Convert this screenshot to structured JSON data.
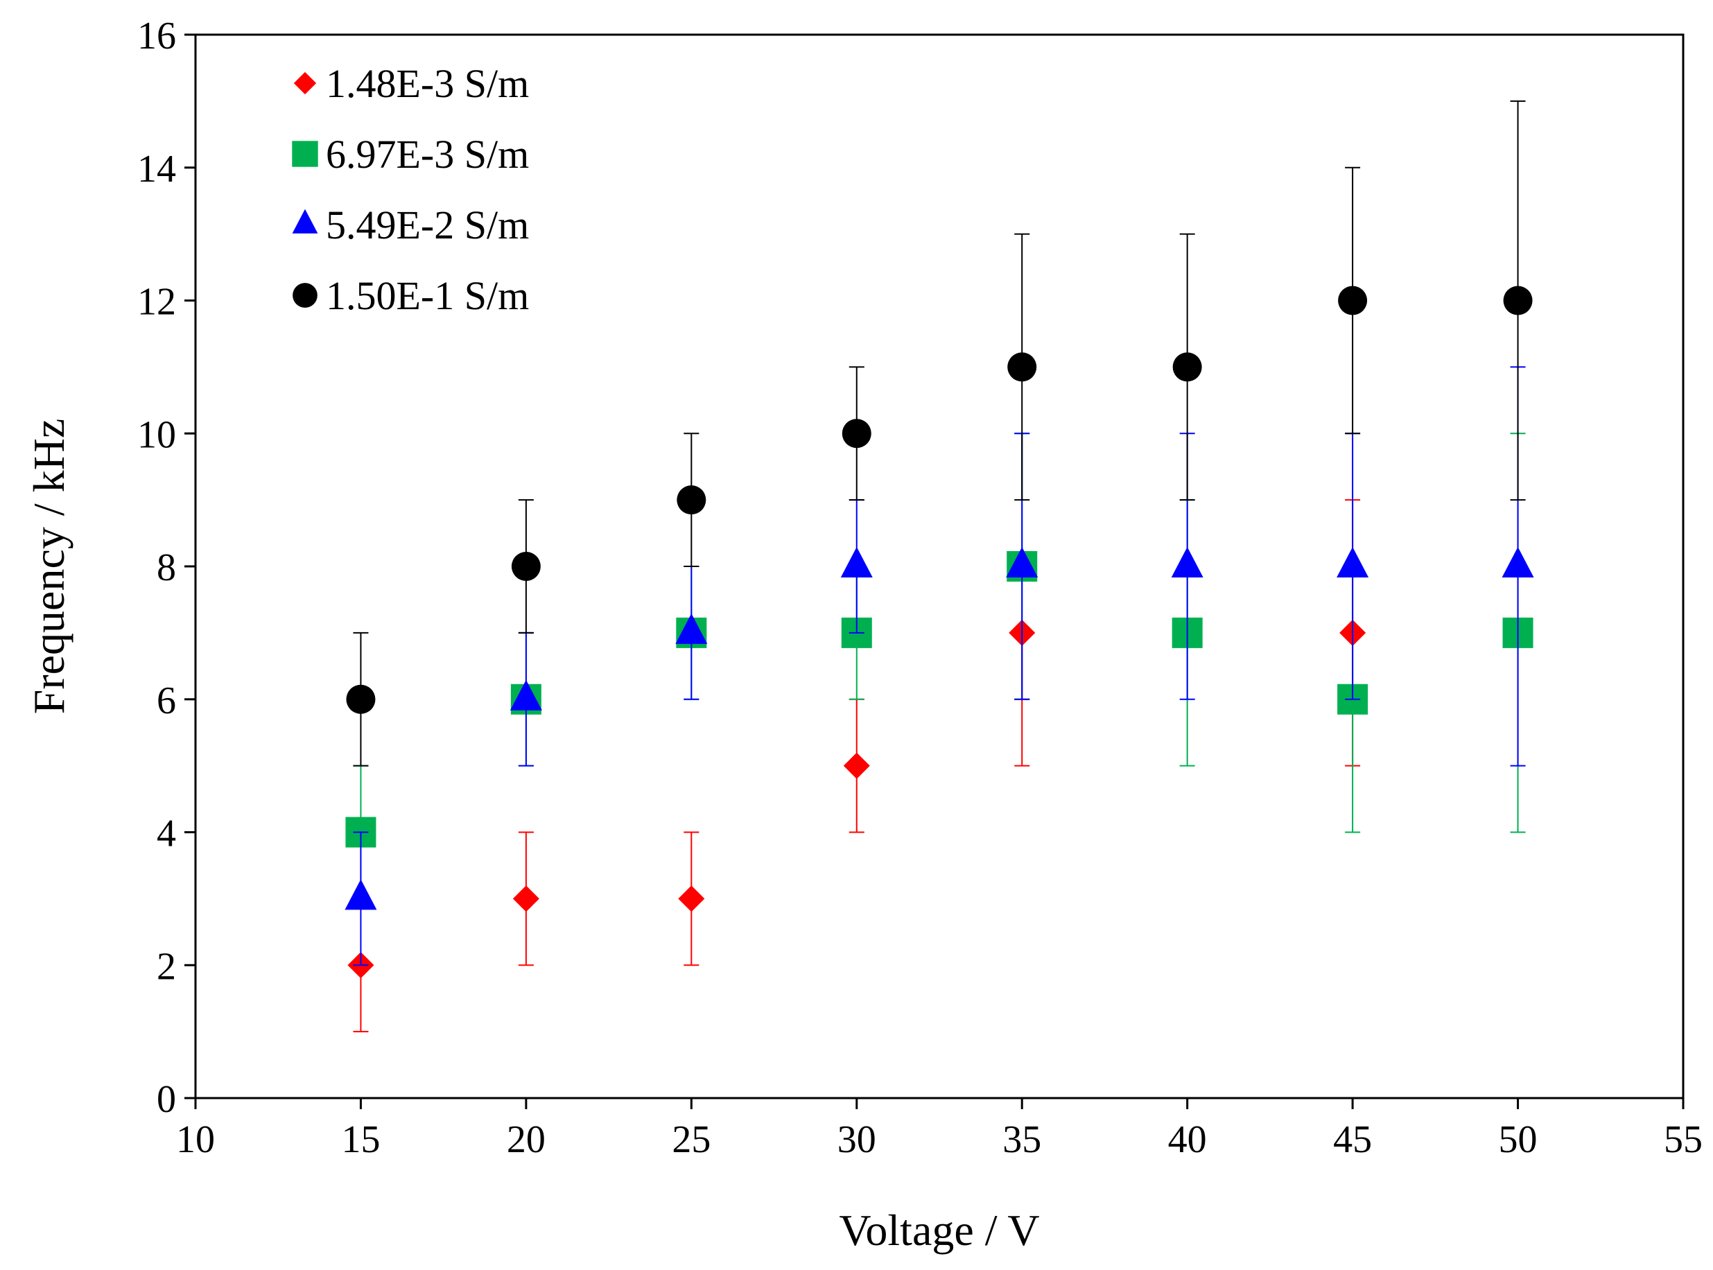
{
  "chart_data": {
    "type": "scatter",
    "title": "",
    "xlabel": "Voltage  / V",
    "ylabel": "Frequency  / kHz",
    "xlim": [
      10,
      55
    ],
    "ylim": [
      0,
      16
    ],
    "xticks": [
      10,
      15,
      20,
      25,
      30,
      35,
      40,
      45,
      50,
      55
    ],
    "yticks": [
      0,
      2,
      4,
      6,
      8,
      10,
      12,
      14,
      16
    ],
    "grid": false,
    "legend_position": "top-left",
    "x": [
      15,
      20,
      25,
      30,
      35,
      40,
      45,
      50
    ],
    "series": [
      {
        "name": "1.48E-3 S/m",
        "color": "#ff0000",
        "marker": "diamond",
        "values": [
          2,
          3,
          3,
          5,
          7,
          null,
          7,
          null
        ],
        "err_low": [
          1,
          2,
          2,
          4,
          5,
          null,
          5,
          null
        ],
        "err_high": [
          null,
          4,
          4,
          6,
          6,
          null,
          9,
          null
        ]
      },
      {
        "name": "6.97E-3 S/m",
        "color": "#00b050",
        "marker": "square",
        "values": [
          4,
          6,
          7,
          7,
          8,
          7,
          6,
          7
        ],
        "err_low": [
          3,
          5,
          6,
          6,
          6,
          5,
          4,
          4
        ],
        "err_high": [
          5,
          7,
          8,
          8,
          10,
          9,
          8,
          10
        ]
      },
      {
        "name": "5.49E-2 S/m",
        "color": "#0000ff",
        "marker": "triangle",
        "values": [
          3,
          6,
          7,
          8,
          8,
          8,
          8,
          8
        ],
        "err_low": [
          2,
          5,
          6,
          7,
          6,
          6,
          6,
          5
        ],
        "err_high": [
          4,
          7,
          8,
          9,
          10,
          10,
          10,
          11
        ]
      },
      {
        "name": "1.50E-1 S/m",
        "color": "#000000",
        "marker": "circle",
        "values": [
          6,
          8,
          9,
          10,
          11,
          11,
          12,
          12
        ],
        "err_low": [
          5,
          7,
          8,
          9,
          9,
          9,
          10,
          9
        ],
        "err_high": [
          7,
          9,
          10,
          11,
          13,
          13,
          14,
          15
        ]
      }
    ]
  }
}
